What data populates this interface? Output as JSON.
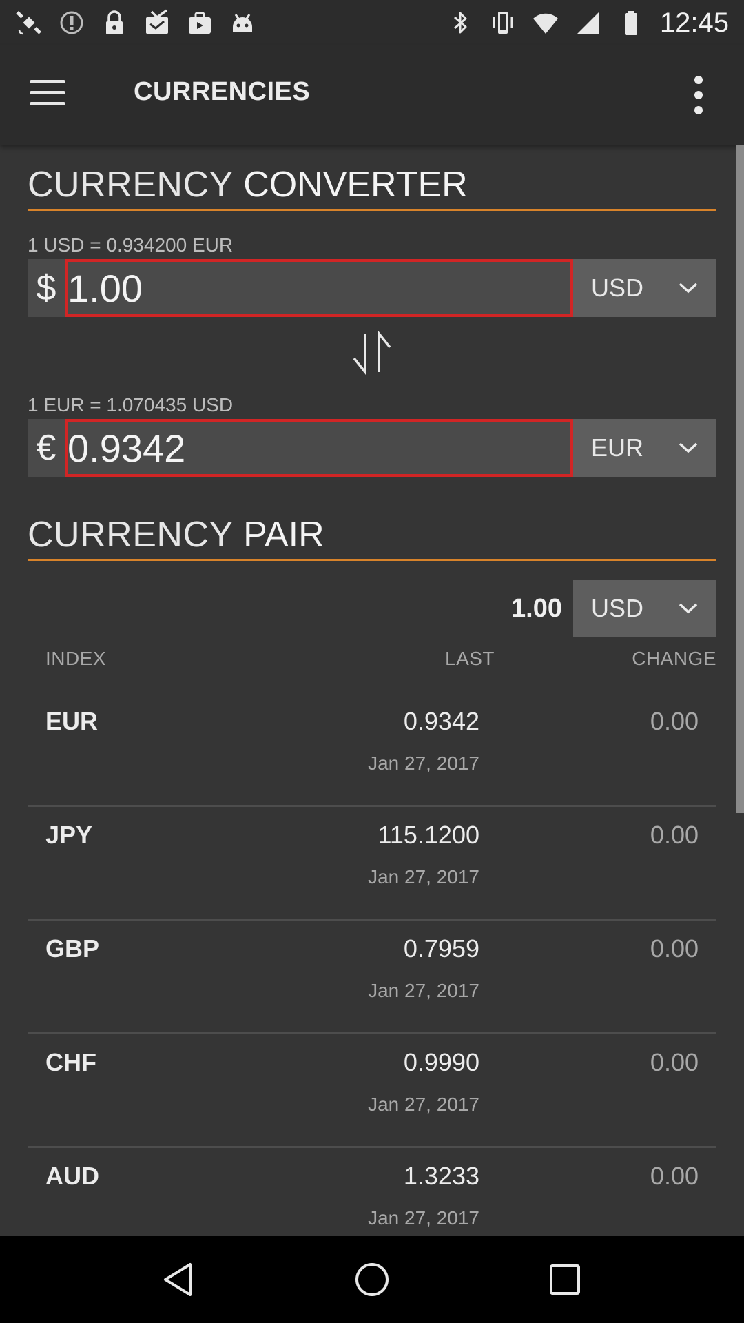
{
  "status_bar": {
    "time": "12:45",
    "icons_left": [
      "satellite-icon",
      "alert-circle-icon",
      "lock-icon",
      "inbox-icon",
      "briefcase-icon",
      "android-icon"
    ],
    "icons_right": [
      "bluetooth-icon",
      "vibrate-icon",
      "wifi-icon",
      "signal-icon",
      "battery-icon"
    ]
  },
  "app_bar": {
    "title": "CURRENCIES",
    "menu_icon": "hamburger-icon",
    "overflow_icon": "more-vert-icon"
  },
  "converter": {
    "header_light": "CURRENCY",
    "header_bold": "CONVERTER",
    "from": {
      "rate": "1 USD = 0.934200 EUR",
      "symbol": "$",
      "amount": "1.00",
      "currency": "USD"
    },
    "to": {
      "rate": "1 EUR = 1.070435 USD",
      "symbol": "€",
      "amount": "0.9342",
      "currency": "EUR"
    },
    "swap_icon": "swap-vertical-icon"
  },
  "pair": {
    "header_light": "CURRENCY",
    "header_bold": "PAIR",
    "amount": "1.00",
    "currency": "USD",
    "columns": {
      "index": "INDEX",
      "last": "LAST",
      "change": "CHANGE"
    },
    "rows": [
      {
        "index": "EUR",
        "last": "0.9342",
        "date": "Jan 27, 2017",
        "change": "0.00"
      },
      {
        "index": "JPY",
        "last": "115.1200",
        "date": "Jan 27, 2017",
        "change": "0.00"
      },
      {
        "index": "GBP",
        "last": "0.7959",
        "date": "Jan 27, 2017",
        "change": "0.00"
      },
      {
        "index": "CHF",
        "last": "0.9990",
        "date": "Jan 27, 2017",
        "change": "0.00"
      },
      {
        "index": "AUD",
        "last": "1.3233",
        "date": "Jan 27, 2017",
        "change": "0.00"
      }
    ]
  },
  "nav_bar": {
    "back_icon": "back-triangle-icon",
    "home_icon": "home-circle-icon",
    "recents_icon": "recents-square-icon"
  },
  "colors": {
    "background": "#353535",
    "bar": "#2c2c2c",
    "accent": "#d8832a",
    "input_border": "#d12525"
  }
}
